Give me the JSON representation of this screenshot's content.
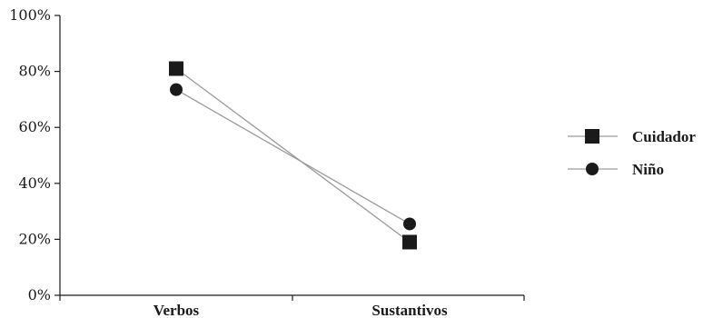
{
  "chart_data": {
    "type": "line",
    "categories": [
      "Verbos",
      "Sustantivos"
    ],
    "series": [
      {
        "name": "Cuidador",
        "values": [
          81,
          19
        ],
        "marker": "square"
      },
      {
        "name": "Niño",
        "values": [
          73.5,
          25.5
        ],
        "marker": "circle"
      }
    ],
    "ylim": [
      0,
      100
    ],
    "yticks": [
      "0%",
      "20%",
      "40%",
      "60%",
      "80%",
      "100%"
    ],
    "grid": false,
    "legend_position": "right",
    "colors": {
      "line": "#9a9a9a",
      "marker": "#1a1a1a",
      "axis": "#1a1a1a"
    }
  }
}
